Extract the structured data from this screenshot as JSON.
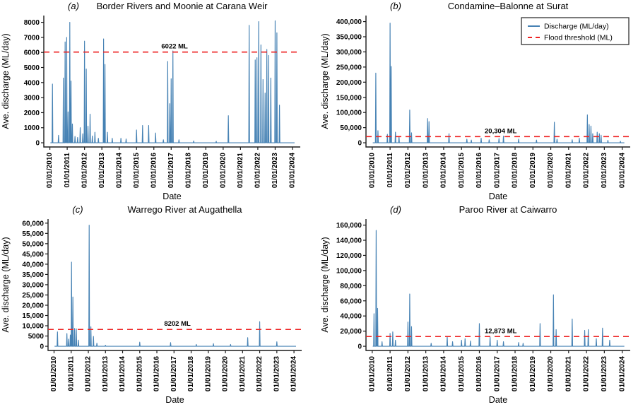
{
  "colors": {
    "discharge_line": "#4682b4",
    "flood_threshold_line": "#ee2222",
    "axis": "#1a1a1a",
    "text": "#000000",
    "legend_border": "#333333",
    "background": "#ffffff"
  },
  "legend": {
    "location": "top-right of panel (b)",
    "items": [
      {
        "label": "Discharge (ML/day)",
        "color": "#4682b4",
        "line_style": "solid"
      },
      {
        "label": "Flood threshold (ML)",
        "color": "#ee2222",
        "line_style": "dashed"
      }
    ]
  },
  "axes": {
    "x_label": "Date",
    "y_label": "Ave. discharge (ML/day)",
    "x_tick_labels": [
      "01/01/2010",
      "01/01/2011",
      "01/01/2012",
      "01/01/2013",
      "01/01/2014",
      "01/01/2015",
      "01/01/2016",
      "01/01/2017",
      "01/01/2018",
      "01/01/2019",
      "01/01/2020",
      "01/01/2021",
      "01/01/2022",
      "01/01/2023",
      "01/01/2024"
    ],
    "x_tick_years": [
      2010,
      2011,
      2012,
      2013,
      2014,
      2015,
      2016,
      2017,
      2018,
      2019,
      2020,
      2021,
      2022,
      2023,
      2024
    ]
  },
  "chart_data": [
    {
      "id": "a",
      "letter": "(a)",
      "title": "Border Rivers and Moonie at Carana Weir",
      "type": "line",
      "xlabel": "Date",
      "ylabel": "Ave. discharge (ML/day)",
      "threshold_ML": 6022,
      "threshold_label": "6022 ML",
      "ylim": [
        0,
        8450
      ],
      "ytick_values": [
        0,
        1000,
        2000,
        3000,
        4000,
        5000,
        6000,
        7000,
        8000
      ],
      "ytick_labels": [
        "0",
        "1000",
        "2000",
        "3000",
        "4000",
        "5000",
        "6000",
        "7000",
        "8000"
      ],
      "x_domain": [
        2009.65,
        2024.45
      ],
      "series_name": "Discharge (ML/day)",
      "spikes_year_peakML": [
        [
          2010.15,
          3900
        ],
        [
          2010.5,
          500
        ],
        [
          2010.78,
          4300
        ],
        [
          2010.88,
          6700
        ],
        [
          2010.97,
          7000
        ],
        [
          2011.05,
          2050
        ],
        [
          2011.15,
          8000
        ],
        [
          2011.22,
          4100
        ],
        [
          2011.3,
          1250
        ],
        [
          2011.45,
          420
        ],
        [
          2011.6,
          350
        ],
        [
          2011.75,
          1000
        ],
        [
          2011.9,
          600
        ],
        [
          2012.0,
          6750
        ],
        [
          2012.1,
          4900
        ],
        [
          2012.2,
          1100
        ],
        [
          2012.32,
          1900
        ],
        [
          2012.45,
          450
        ],
        [
          2012.6,
          700
        ],
        [
          2012.8,
          300
        ],
        [
          2013.1,
          6900
        ],
        [
          2013.18,
          5200
        ],
        [
          2013.32,
          700
        ],
        [
          2013.6,
          300
        ],
        [
          2014.1,
          300
        ],
        [
          2014.4,
          250
        ],
        [
          2015.0,
          850
        ],
        [
          2015.35,
          1150
        ],
        [
          2015.7,
          1150
        ],
        [
          2016.1,
          650
        ],
        [
          2016.55,
          200
        ],
        [
          2016.8,
          5400
        ],
        [
          2016.92,
          2600
        ],
        [
          2017.0,
          4250
        ],
        [
          2017.1,
          6100
        ],
        [
          2017.45,
          200
        ],
        [
          2018.3,
          120
        ],
        [
          2019.6,
          100
        ],
        [
          2020.3,
          1800
        ],
        [
          2021.5,
          7800
        ],
        [
          2021.85,
          5500
        ],
        [
          2021.95,
          5650
        ],
        [
          2022.05,
          8050
        ],
        [
          2022.18,
          6500
        ],
        [
          2022.3,
          4200
        ],
        [
          2022.42,
          3300
        ],
        [
          2022.52,
          6200
        ],
        [
          2022.62,
          5800
        ],
        [
          2022.75,
          4300
        ],
        [
          2023.0,
          8100
        ],
        [
          2023.1,
          7300
        ],
        [
          2023.25,
          2500
        ]
      ]
    },
    {
      "id": "b",
      "letter": "(b)",
      "title": "Condamine–Balonne at Surat",
      "type": "line",
      "xlabel": "Date",
      "ylabel": "Ave. discharge (ML/day)",
      "threshold_ML": 20304,
      "threshold_label": "20,304 ML",
      "ylim": [
        0,
        420000
      ],
      "ytick_values": [
        0,
        50000,
        100000,
        150000,
        200000,
        250000,
        300000,
        350000,
        400000
      ],
      "ytick_labels": [
        "0",
        "50,000",
        "100,000",
        "150,000",
        "200,000",
        "250,000",
        "300,000",
        "350,000",
        "400,000"
      ],
      "x_domain": [
        2009.65,
        2024.45
      ],
      "series_name": "Discharge (ML/day)",
      "has_legend": true,
      "spikes_year_peakML": [
        [
          2010.2,
          230000
        ],
        [
          2010.32,
          40000
        ],
        [
          2010.85,
          28000
        ],
        [
          2011.0,
          395000
        ],
        [
          2011.06,
          252000
        ],
        [
          2011.3,
          35000
        ],
        [
          2011.5,
          20000
        ],
        [
          2012.1,
          108000
        ],
        [
          2012.2,
          33000
        ],
        [
          2013.1,
          80000
        ],
        [
          2013.18,
          70000
        ],
        [
          2014.3,
          30000
        ],
        [
          2015.3,
          12000
        ],
        [
          2015.55,
          9000
        ],
        [
          2016.1,
          15000
        ],
        [
          2016.55,
          10000
        ],
        [
          2017.1,
          14000
        ],
        [
          2017.35,
          22000
        ],
        [
          2018.2,
          12000
        ],
        [
          2019.2,
          9000
        ],
        [
          2020.2,
          68000
        ],
        [
          2020.35,
          12000
        ],
        [
          2021.2,
          10000
        ],
        [
          2021.6,
          15000
        ],
        [
          2022.05,
          92000
        ],
        [
          2022.15,
          60000
        ],
        [
          2022.25,
          55000
        ],
        [
          2022.35,
          30000
        ],
        [
          2022.6,
          35000
        ],
        [
          2022.72,
          30000
        ],
        [
          2022.82,
          25000
        ],
        [
          2023.2,
          8000
        ],
        [
          2023.9,
          5000
        ]
      ]
    },
    {
      "id": "c",
      "letter": "(c)",
      "title": "Warrego River at Augathella",
      "type": "line",
      "xlabel": "Date",
      "ylabel": "Ave. discharge (ML/day)",
      "threshold_ML": 8202,
      "threshold_label": "8202 ML",
      "ylim": [
        0,
        62000
      ],
      "ytick_values": [
        0,
        5000,
        10000,
        15000,
        20000,
        25000,
        30000,
        35000,
        40000,
        45000,
        50000,
        55000,
        60000
      ],
      "ytick_labels": [
        "0",
        "5000",
        "10,000",
        "15,000",
        "20,000",
        "25,000",
        "30,000",
        "35,000",
        "40,000",
        "45,000",
        "50,000",
        "55,000",
        "60,000"
      ],
      "x_domain": [
        2009.65,
        2024.45
      ],
      "series_name": "Discharge (ML/day)",
      "spikes_year_peakML": [
        [
          2010.2,
          7000
        ],
        [
          2010.75,
          6200
        ],
        [
          2010.85,
          3500
        ],
        [
          2010.95,
          5500
        ],
        [
          2011.02,
          41000
        ],
        [
          2011.1,
          24000
        ],
        [
          2011.2,
          8700
        ],
        [
          2011.3,
          8500
        ],
        [
          2011.42,
          3000
        ],
        [
          2012.05,
          59000
        ],
        [
          2012.15,
          9500
        ],
        [
          2012.3,
          4800
        ],
        [
          2012.5,
          1500
        ],
        [
          2013.0,
          500
        ],
        [
          2015.0,
          2000
        ],
        [
          2016.8,
          1800
        ],
        [
          2018.3,
          900
        ],
        [
          2019.3,
          1300
        ],
        [
          2020.3,
          900
        ],
        [
          2021.3,
          4200
        ],
        [
          2022.0,
          12000
        ],
        [
          2023.0,
          2200
        ]
      ]
    },
    {
      "id": "d",
      "letter": "(d)",
      "title": "Paroo River at Caiwarro",
      "type": "line",
      "xlabel": "Date",
      "ylabel": "Ave. discharge (ML/day)",
      "threshold_ML": 12873,
      "threshold_label": "12,873 ML",
      "ylim": [
        0,
        168000
      ],
      "ytick_values": [
        0,
        20000,
        40000,
        60000,
        80000,
        100000,
        120000,
        140000,
        160000
      ],
      "ytick_labels": [
        "0",
        "20,000",
        "40,000",
        "60,000",
        "80,000",
        "100,000",
        "120,000",
        "140,000",
        "160,000"
      ],
      "x_domain": [
        2009.65,
        2024.45
      ],
      "series_name": "Discharge (ML/day)",
      "spikes_year_peakML": [
        [
          2010.1,
          43000
        ],
        [
          2010.22,
          153000
        ],
        [
          2010.3,
          50000
        ],
        [
          2010.55,
          6000
        ],
        [
          2011.0,
          17000
        ],
        [
          2011.15,
          19000
        ],
        [
          2011.3,
          8000
        ],
        [
          2012.0,
          32000
        ],
        [
          2012.1,
          69000
        ],
        [
          2012.2,
          26000
        ],
        [
          2013.3,
          4000
        ],
        [
          2014.2,
          13000
        ],
        [
          2014.5,
          6000
        ],
        [
          2015.0,
          8000
        ],
        [
          2015.2,
          10000
        ],
        [
          2015.5,
          7000
        ],
        [
          2016.0,
          30000
        ],
        [
          2016.6,
          12000
        ],
        [
          2017.0,
          8000
        ],
        [
          2017.35,
          6000
        ],
        [
          2018.2,
          5000
        ],
        [
          2018.45,
          4000
        ],
        [
          2019.4,
          30000
        ],
        [
          2020.15,
          68000
        ],
        [
          2020.3,
          22000
        ],
        [
          2021.2,
          36000
        ],
        [
          2021.9,
          21000
        ],
        [
          2022.1,
          22000
        ],
        [
          2022.55,
          10000
        ],
        [
          2022.9,
          24000
        ],
        [
          2023.3,
          8000
        ]
      ]
    }
  ]
}
